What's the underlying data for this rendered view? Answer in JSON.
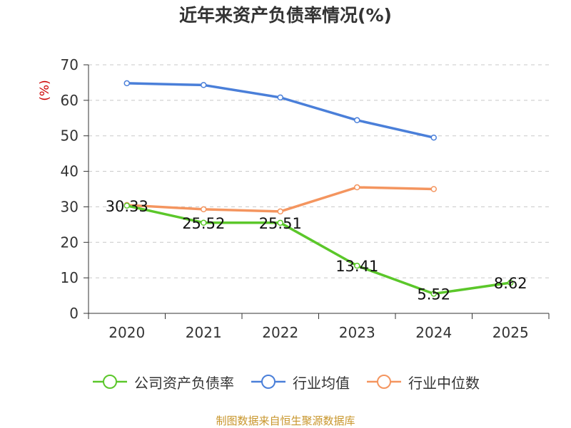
{
  "chart_data": {
    "type": "line",
    "title": "近年来资产负债率情况(%)",
    "ylabel": "(%)",
    "categories": [
      "2020",
      "2021",
      "2022",
      "2023",
      "2024",
      "2025"
    ],
    "ylim": [
      0,
      70
    ],
    "yticks": [
      0,
      10,
      20,
      30,
      40,
      50,
      60,
      70
    ],
    "grid": true,
    "legend_position": "bottom",
    "series": [
      {
        "name": "公司资产负债率",
        "color": "#5bc72a",
        "values": [
          30.33,
          25.52,
          25.51,
          13.41,
          5.52,
          8.62
        ],
        "labels": [
          "30.33",
          "25.52",
          "25.51",
          "13.41",
          "5.52",
          "8.62"
        ]
      },
      {
        "name": "行业均值",
        "color": "#4a7fd9",
        "values": [
          64.8,
          64.3,
          60.8,
          54.4,
          49.5,
          null
        ]
      },
      {
        "name": "行业中位数",
        "color": "#f4955f",
        "values": [
          30.5,
          29.3,
          28.7,
          35.5,
          35.0,
          null
        ]
      }
    ]
  },
  "footer": {
    "source": "制图数据来自恒生聚源数据库"
  }
}
